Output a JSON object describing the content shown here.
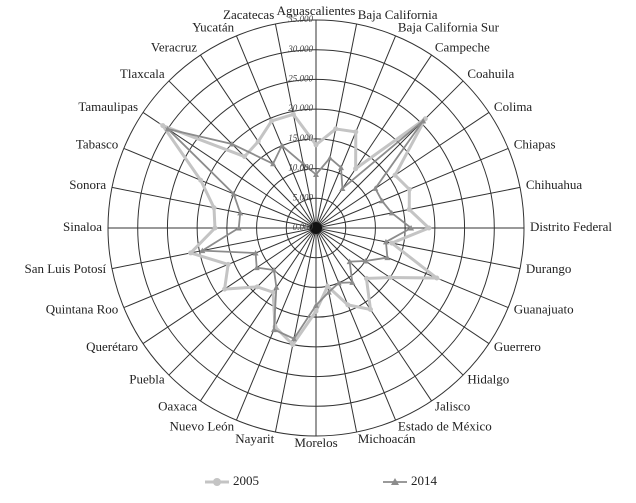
{
  "chart_data": {
    "type": "radar",
    "categories": [
      "Aguascalientes",
      "Baja California",
      "Baja California Sur",
      "Campeche",
      "Coahuila",
      "Colima",
      "Chiapas",
      "Chihuahua",
      "Distrito Federal",
      "Durango",
      "Guanajuato",
      "Guerrero",
      "Hidalgo",
      "Jalisco",
      "Estado de México",
      "Michoacán",
      "Morelos",
      "Nayarit",
      "Nuevo León",
      "Oaxaca",
      "Puebla",
      "Querétaro",
      "Quintana Roo",
      "San Luis Potosí",
      "Sinaloa",
      "Sonora",
      "Tabasco",
      "Tamaulipas",
      "Tlaxcala",
      "Veracruz",
      "Yucatán",
      "Zacatecas"
    ],
    "series": [
      {
        "name": "2005",
        "color": "#c4c4c4",
        "marker": "circle",
        "values": [
          14000,
          17000,
          17500,
          12000,
          26000,
          16000,
          17000,
          16000,
          19000,
          13000,
          22000,
          15000,
          12000,
          16500,
          14000,
          10000,
          14000,
          20000,
          18000,
          13000,
          14000,
          18500,
          16000,
          21500,
          17000,
          17500,
          21000,
          31000,
          17000,
          17500,
          19500,
          19500
        ]
      },
      {
        "name": "2014",
        "color": "#8c8c8c",
        "marker": "triangle",
        "values": [
          9000,
          12000,
          11000,
          8000,
          25500,
          12000,
          12000,
          13000,
          16000,
          12000,
          13000,
          10000,
          8000,
          11000,
          10000,
          11000,
          13000,
          19000,
          18500,
          12000,
          10000,
          12000,
          11000,
          19500,
          13000,
          13000,
          15000,
          30000,
          20000,
          13000,
          15000,
          11000
        ]
      }
    ],
    "rlim": [
      0,
      35000
    ],
    "rticks": [
      {
        "value": 0,
        "label": "0.000"
      },
      {
        "value": 5000,
        "label": "5.000"
      },
      {
        "value": 10000,
        "label": "10.000"
      },
      {
        "value": 15000,
        "label": "15.000"
      },
      {
        "value": 20000,
        "label": "20.000"
      },
      {
        "value": 25000,
        "label": "25.000"
      },
      {
        "value": 30000,
        "label": "30.000"
      },
      {
        "value": 35000,
        "label": "35.000"
      }
    ],
    "grid": true
  }
}
